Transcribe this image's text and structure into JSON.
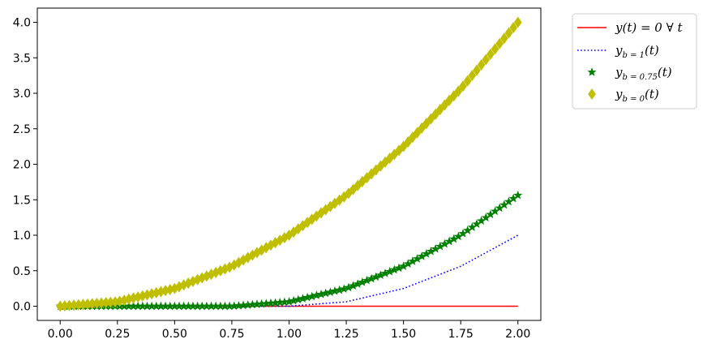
{
  "chart_data": {
    "type": "line",
    "title": "",
    "xlabel": "",
    "ylabel": "",
    "xlim": [
      -0.1,
      2.1
    ],
    "ylim": [
      -0.2,
      4.2
    ],
    "x_ticks": [
      0.0,
      0.25,
      0.5,
      0.75,
      1.0,
      1.25,
      1.5,
      1.75,
      2.0
    ],
    "x_tick_labels": [
      "0.00",
      "0.25",
      "0.50",
      "0.75",
      "1.00",
      "1.25",
      "1.50",
      "1.75",
      "2.00"
    ],
    "y_ticks": [
      0.0,
      0.5,
      1.0,
      1.5,
      2.0,
      2.5,
      3.0,
      3.5,
      4.0
    ],
    "y_tick_labels": [
      "0.0",
      "0.5",
      "1.0",
      "1.5",
      "2.0",
      "2.5",
      "3.0",
      "3.5",
      "4.0"
    ],
    "grid": false,
    "legend_position": "outside top-right",
    "x": [
      0.0,
      0.25,
      0.5,
      0.75,
      1.0,
      1.25,
      1.5,
      1.75,
      2.0
    ],
    "series": [
      {
        "name": "y(t) = 0 ∀ t",
        "style": "solid-line",
        "color": "#ff0000",
        "values": [
          0,
          0,
          0,
          0,
          0,
          0,
          0,
          0,
          0
        ]
      },
      {
        "name": "y_{b=1}(t)",
        "style": "dotted-line",
        "color": "#0000ff",
        "values": [
          0,
          0,
          0,
          0,
          0,
          0.0625,
          0.25,
          0.5625,
          1.0
        ]
      },
      {
        "name": "y_{b=0.75}(t)",
        "style": "star-markers",
        "color": "#008000",
        "values": [
          0,
          0,
          0,
          0,
          0.0625,
          0.25,
          0.5625,
          1.0,
          1.5625
        ]
      },
      {
        "name": "y_{b=0}(t)",
        "style": "diamond-markers",
        "color": "#bfbf00",
        "values": [
          0,
          0.0625,
          0.25,
          0.5625,
          1.0,
          1.5625,
          2.25,
          3.0625,
          4.0
        ]
      }
    ],
    "legend": [
      {
        "main": "y(t) = 0 ∀ t",
        "sub": "",
        "tail": ""
      },
      {
        "main": "y",
        "sub": "b = 1",
        "tail": "(t)"
      },
      {
        "main": "y",
        "sub": "b = 0.75",
        "tail": "(t)"
      },
      {
        "main": "y",
        "sub": "b = 0",
        "tail": "(t)"
      }
    ]
  }
}
